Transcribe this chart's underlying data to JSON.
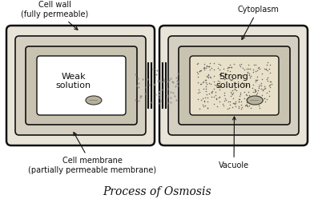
{
  "bg_color": "#ffffff",
  "title": "Process of Osmosis",
  "title_fontsize": 10,
  "label_fontsize": 7,
  "weak_solution_text": "Weak\nsolution",
  "strong_solution_text": "Strong\nsolution",
  "cell_wall_label": "Cell wall\n(fully permeable)",
  "cytoplasm_label": "Cytoplasm",
  "cell_membrane_label": "Cell membrane\n(partially permeable membrane)",
  "vacuole_label": "Vacuole",
  "layer_bg": "#e8e4d8",
  "inner_bg": "#d4cfc0",
  "vacuole_left_fill": "#ffffff",
  "vacuole_right_fill": "#e8e0c8",
  "organelle_fill": "#b8b098",
  "dark_line": "#111111",
  "dot_color": "#555555"
}
